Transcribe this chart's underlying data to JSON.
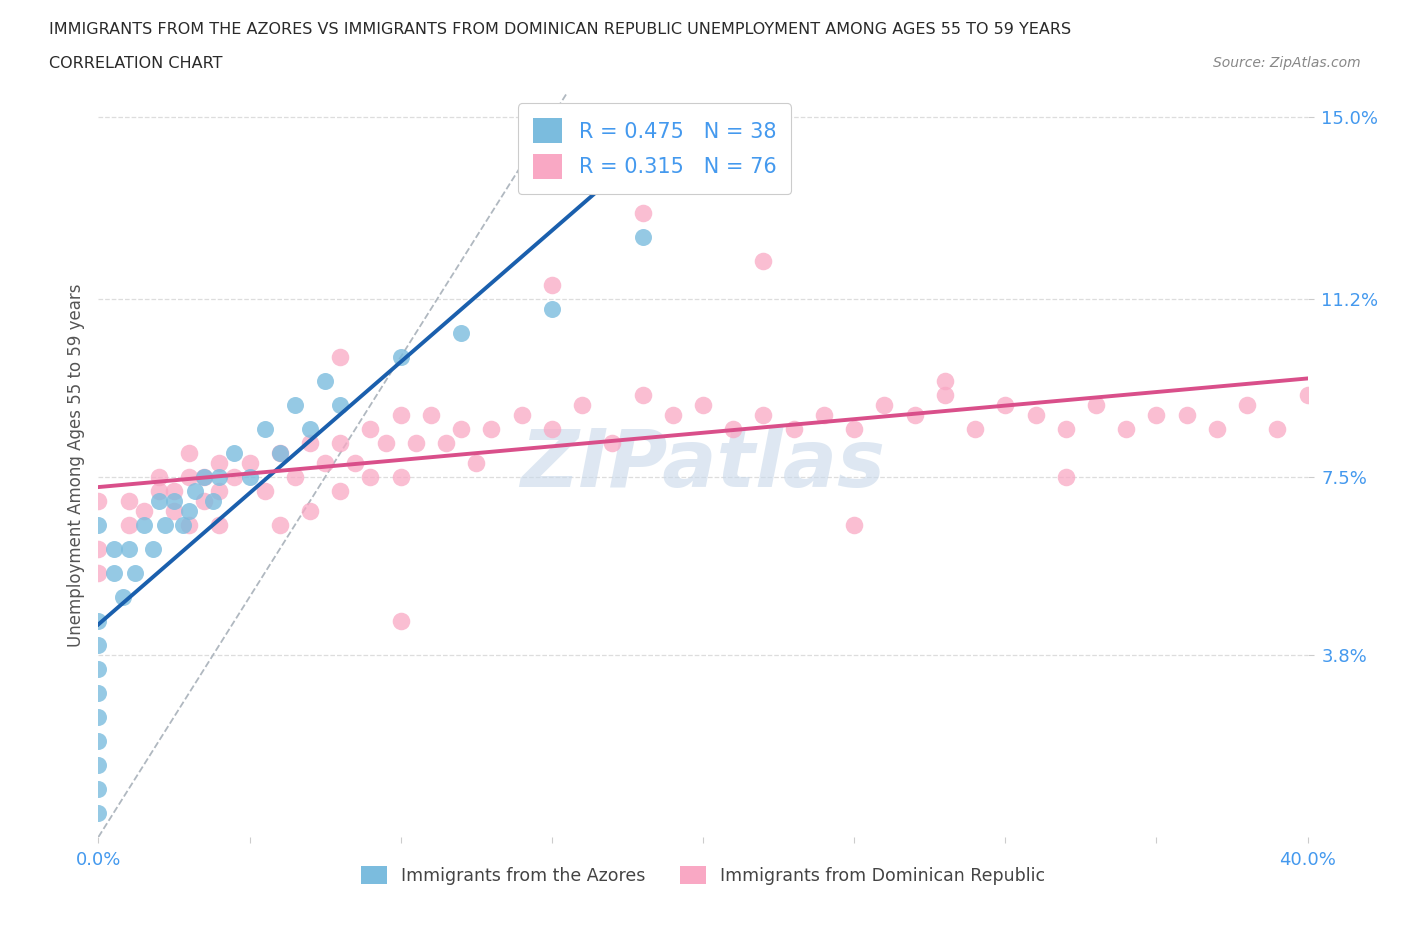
{
  "title_line1": "IMMIGRANTS FROM THE AZORES VS IMMIGRANTS FROM DOMINICAN REPUBLIC UNEMPLOYMENT AMONG AGES 55 TO 59 YEARS",
  "title_line2": "CORRELATION CHART",
  "source_text": "Source: ZipAtlas.com",
  "ylabel": "Unemployment Among Ages 55 to 59 years",
  "xlim": [
    0.0,
    0.4
  ],
  "ylim": [
    0.0,
    0.155
  ],
  "yticks": [
    0.038,
    0.075,
    0.112,
    0.15
  ],
  "ytick_labels": [
    "3.8%",
    "7.5%",
    "11.2%",
    "15.0%"
  ],
  "xticks": [
    0.0,
    0.05,
    0.1,
    0.15,
    0.2,
    0.25,
    0.3,
    0.35,
    0.4
  ],
  "azores_R": 0.475,
  "azores_N": 38,
  "dr_R": 0.315,
  "dr_N": 76,
  "azores_color": "#7bbcde",
  "dr_color": "#f9a8c4",
  "azores_trend_color": "#1a5fad",
  "dr_trend_color": "#d94f8a",
  "ref_line_color": "#b0b8c0",
  "watermark_color": "#c8d8ea",
  "azores_x": [
    0.0,
    0.0,
    0.0,
    0.0,
    0.0,
    0.0,
    0.0,
    0.0,
    0.0,
    0.0,
    0.005,
    0.005,
    0.008,
    0.01,
    0.012,
    0.015,
    0.018,
    0.02,
    0.022,
    0.025,
    0.028,
    0.03,
    0.032,
    0.035,
    0.038,
    0.04,
    0.045,
    0.05,
    0.055,
    0.06,
    0.065,
    0.07,
    0.075,
    0.08,
    0.1,
    0.12,
    0.15,
    0.18
  ],
  "azores_y": [
    0.005,
    0.01,
    0.015,
    0.02,
    0.025,
    0.03,
    0.035,
    0.04,
    0.045,
    0.065,
    0.055,
    0.06,
    0.05,
    0.06,
    0.055,
    0.065,
    0.06,
    0.07,
    0.065,
    0.07,
    0.065,
    0.068,
    0.072,
    0.075,
    0.07,
    0.075,
    0.08,
    0.075,
    0.085,
    0.08,
    0.09,
    0.085,
    0.095,
    0.09,
    0.1,
    0.105,
    0.11,
    0.125
  ],
  "dr_x": [
    0.0,
    0.0,
    0.0,
    0.01,
    0.01,
    0.015,
    0.02,
    0.02,
    0.025,
    0.025,
    0.03,
    0.03,
    0.03,
    0.035,
    0.035,
    0.04,
    0.04,
    0.04,
    0.045,
    0.05,
    0.055,
    0.06,
    0.06,
    0.065,
    0.07,
    0.07,
    0.075,
    0.08,
    0.08,
    0.085,
    0.09,
    0.09,
    0.095,
    0.1,
    0.1,
    0.105,
    0.11,
    0.115,
    0.12,
    0.125,
    0.13,
    0.14,
    0.15,
    0.16,
    0.17,
    0.18,
    0.19,
    0.2,
    0.21,
    0.22,
    0.23,
    0.24,
    0.25,
    0.26,
    0.27,
    0.28,
    0.29,
    0.3,
    0.31,
    0.32,
    0.33,
    0.34,
    0.35,
    0.36,
    0.37,
    0.38,
    0.39,
    0.4,
    0.22,
    0.28,
    0.18,
    0.15,
    0.32,
    0.1,
    0.08,
    0.25
  ],
  "dr_y": [
    0.055,
    0.06,
    0.07,
    0.065,
    0.07,
    0.068,
    0.072,
    0.075,
    0.068,
    0.072,
    0.075,
    0.08,
    0.065,
    0.07,
    0.075,
    0.072,
    0.078,
    0.065,
    0.075,
    0.078,
    0.072,
    0.08,
    0.065,
    0.075,
    0.082,
    0.068,
    0.078,
    0.082,
    0.072,
    0.078,
    0.085,
    0.075,
    0.082,
    0.088,
    0.075,
    0.082,
    0.088,
    0.082,
    0.085,
    0.078,
    0.085,
    0.088,
    0.085,
    0.09,
    0.082,
    0.092,
    0.088,
    0.09,
    0.085,
    0.088,
    0.085,
    0.088,
    0.085,
    0.09,
    0.088,
    0.092,
    0.085,
    0.09,
    0.088,
    0.085,
    0.09,
    0.085,
    0.088,
    0.088,
    0.085,
    0.09,
    0.085,
    0.092,
    0.12,
    0.095,
    0.13,
    0.115,
    0.075,
    0.045,
    0.1,
    0.065
  ]
}
